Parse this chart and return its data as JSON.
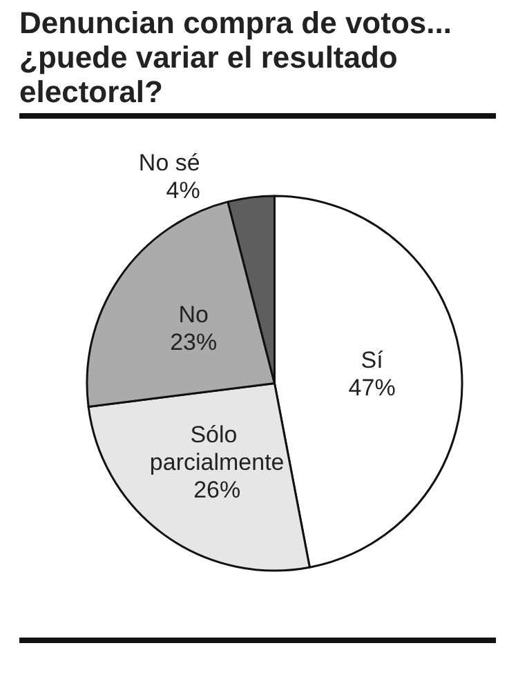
{
  "chart_data": {
    "type": "pie",
    "title": "Denuncian compra de votos... ¿puede variar el resultado electoral?",
    "categories": [
      "Sí",
      "Sólo parcialmente",
      "No",
      "No sé"
    ],
    "values": [
      47,
      26,
      23,
      4
    ],
    "value_labels": [
      "47%",
      "26%",
      "23%",
      "4%"
    ],
    "colors": [
      "#ffffff",
      "#e6e6e6",
      "#ababab",
      "#5e5e5e"
    ],
    "legend": false
  }
}
